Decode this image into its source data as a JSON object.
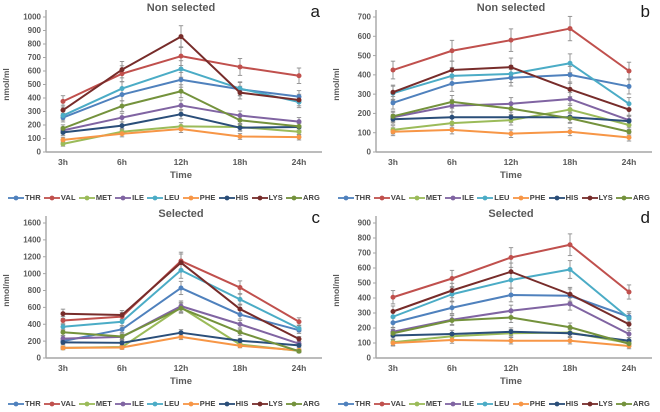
{
  "figure": {
    "xlabel": "Time",
    "ylabel": "nmol/ml",
    "categories": [
      "3h",
      "6h",
      "12h",
      "18h",
      "24h"
    ],
    "legend": [
      "THR",
      "VAL",
      "MET",
      "ILE",
      "LEU",
      "PHE",
      "HIS",
      "LYS",
      "ARG"
    ],
    "colors": {
      "THR": "#4F81BD",
      "VAL": "#C0504D",
      "MET": "#9BBB59",
      "ILE": "#8064A2",
      "LEU": "#4BACC6",
      "PHE": "#F79646",
      "HIS": "#2A4E79",
      "LYS": "#772C2A",
      "ARG": "#74923C"
    },
    "text_color": "#595959",
    "axis_color": "#a6a6a6",
    "error_bar_color": "#8c8c8c"
  },
  "chart_data": [
    {
      "type": "line",
      "panel_letter": "a",
      "title": "Non selected",
      "xlabel": "Time",
      "ylabel": "nmol/ml",
      "ylim": [
        0,
        1000
      ],
      "ystep": 100,
      "categories": [
        "3h",
        "6h",
        "12h",
        "18h",
        "24h"
      ],
      "error_bars": true,
      "legend_position": "bottom",
      "series": [
        {
          "name": "THR",
          "values": [
            255,
            425,
            535,
            465,
            410
          ]
        },
        {
          "name": "VAL",
          "values": [
            375,
            580,
            710,
            630,
            565
          ]
        },
        {
          "name": "MET",
          "values": [
            60,
            150,
            190,
            185,
            150
          ]
        },
        {
          "name": "ILE",
          "values": [
            160,
            255,
            345,
            270,
            225
          ]
        },
        {
          "name": "LEU",
          "values": [
            270,
            470,
            615,
            470,
            370
          ]
        },
        {
          "name": "PHE",
          "values": [
            90,
            135,
            170,
            115,
            110
          ]
        },
        {
          "name": "HIS",
          "values": [
            145,
            195,
            280,
            180,
            185
          ]
        },
        {
          "name": "LYS",
          "values": [
            310,
            610,
            855,
            440,
            385
          ]
        },
        {
          "name": "ARG",
          "values": [
            175,
            340,
            450,
            235,
            190
          ]
        }
      ]
    },
    {
      "type": "line",
      "panel_letter": "b",
      "title": "Non selected",
      "xlabel": "Time",
      "ylabel": "nmol/ml",
      "ylim": [
        0,
        700
      ],
      "ystep": 100,
      "categories": [
        "3h",
        "6h",
        "12h",
        "18h",
        "24h"
      ],
      "error_bars": true,
      "legend_position": "bottom",
      "series": [
        {
          "name": "THR",
          "values": [
            255,
            355,
            385,
            400,
            340
          ]
        },
        {
          "name": "VAL",
          "values": [
            425,
            525,
            580,
            640,
            420
          ]
        },
        {
          "name": "MET",
          "values": [
            115,
            150,
            165,
            220,
            140
          ]
        },
        {
          "name": "ILE",
          "values": [
            180,
            240,
            250,
            275,
            165
          ]
        },
        {
          "name": "LEU",
          "values": [
            305,
            395,
            405,
            460,
            250
          ]
        },
        {
          "name": "PHE",
          "values": [
            105,
            115,
            95,
            105,
            75
          ]
        },
        {
          "name": "HIS",
          "values": [
            170,
            180,
            180,
            180,
            160
          ]
        },
        {
          "name": "LYS",
          "values": [
            310,
            425,
            440,
            325,
            220
          ]
        },
        {
          "name": "ARG",
          "values": [
            185,
            260,
            225,
            175,
            105
          ]
        }
      ]
    },
    {
      "type": "line",
      "panel_letter": "c",
      "title": "Selected",
      "xlabel": "Time",
      "ylabel": "nmol/ml",
      "ylim": [
        0,
        1600
      ],
      "ystep": 200,
      "categories": [
        "3h",
        "6h",
        "12h",
        "18h",
        "24h"
      ],
      "error_bars": true,
      "legend_position": "bottom",
      "series": [
        {
          "name": "THR",
          "values": [
            200,
            340,
            830,
            515,
            330
          ]
        },
        {
          "name": "VAL",
          "values": [
            445,
            490,
            1150,
            835,
            430
          ]
        },
        {
          "name": "MET",
          "values": [
            120,
            130,
            600,
            160,
            85
          ]
        },
        {
          "name": "ILE",
          "values": [
            230,
            250,
            615,
            400,
            170
          ]
        },
        {
          "name": "LEU",
          "values": [
            370,
            430,
            1040,
            695,
            350
          ]
        },
        {
          "name": "PHE",
          "values": [
            120,
            125,
            250,
            145,
            90
          ]
        },
        {
          "name": "HIS",
          "values": [
            185,
            180,
            300,
            205,
            150
          ]
        },
        {
          "name": "LYS",
          "values": [
            525,
            510,
            1130,
            580,
            225
          ]
        },
        {
          "name": "ARG",
          "values": [
            305,
            255,
            590,
            305,
            80
          ]
        }
      ]
    },
    {
      "type": "line",
      "panel_letter": "d",
      "title": "Selected",
      "xlabel": "Time",
      "ylabel": "nmol/ml",
      "ylim": [
        0,
        900
      ],
      "ystep": 100,
      "categories": [
        "3h",
        "6h",
        "12h",
        "18h",
        "24h"
      ],
      "error_bars": true,
      "legend_position": "bottom",
      "series": [
        {
          "name": "THR",
          "values": [
            235,
            335,
            420,
            415,
            275
          ]
        },
        {
          "name": "VAL",
          "values": [
            405,
            530,
            670,
            755,
            440
          ]
        },
        {
          "name": "MET",
          "values": [
            105,
            145,
            165,
            170,
            100
          ]
        },
        {
          "name": "ILE",
          "values": [
            175,
            255,
            315,
            360,
            160
          ]
        },
        {
          "name": "LEU",
          "values": [
            275,
            425,
            520,
            590,
            265
          ]
        },
        {
          "name": "PHE",
          "values": [
            100,
            120,
            115,
            115,
            80
          ]
        },
        {
          "name": "HIS",
          "values": [
            150,
            160,
            175,
            165,
            115
          ]
        },
        {
          "name": "LYS",
          "values": [
            310,
            450,
            575,
            425,
            225
          ]
        },
        {
          "name": "ARG",
          "values": [
            165,
            250,
            270,
            205,
            95
          ]
        }
      ]
    }
  ]
}
